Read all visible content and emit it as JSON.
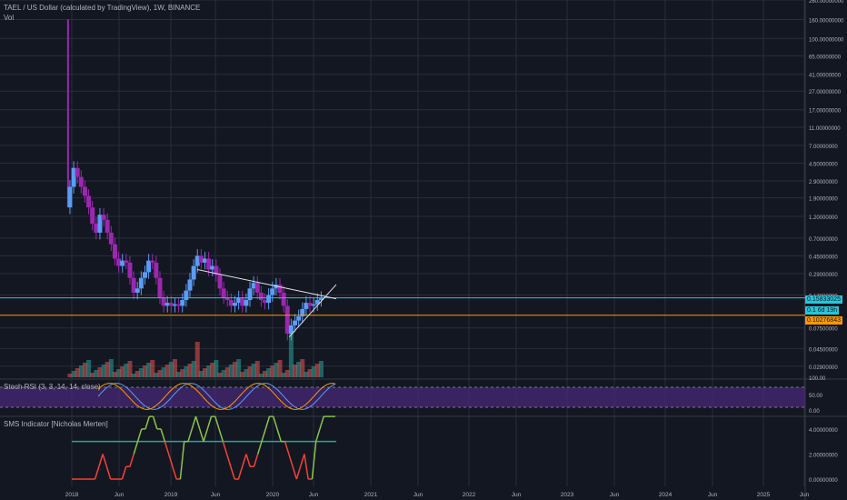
{
  "header": {
    "title": "TAEL / US Dollar (calculated by TradingView), 1W, BINANCE",
    "vol_label": "Vol"
  },
  "colors": {
    "background": "#131722",
    "grid": "#2a2e39",
    "axis_text": "#b2b5be",
    "candle_up": "#5b9cf6",
    "candle_down": "#9c27b0",
    "cyan_line": "#26c6da",
    "orange_line": "#ff9800",
    "stoch_band": "#4a2a7a",
    "sms_green": "#8bc34a",
    "sms_red": "#f44336",
    "sms_level": "#26a69a"
  },
  "price_labels": {
    "cyan": "0.15833025",
    "countdown": "6d 19h",
    "cyan_prefix": "0.1",
    "orange": "0.10276843"
  },
  "x_axis": {
    "ticks": [
      "2018",
      "Jun",
      "2019",
      "Jun",
      "2020",
      "Jun",
      "2021",
      "Jun",
      "2022",
      "Jun",
      "2023",
      "Jun",
      "2024",
      "Jun",
      "2025",
      "Jun"
    ]
  },
  "price_axis": {
    "ticks": [
      "260.00000000",
      "160.00000000",
      "100.00000000",
      "65.00000000",
      "41.00000000",
      "27.00000000",
      "17.00000000",
      "11.00000000",
      "7.00000000",
      "4.50000000",
      "2.90000000",
      "1.90000000",
      "1.20000000",
      "0.70000000",
      "0.45000000",
      "0.29000000",
      "0.17000000",
      "0.07500000",
      "0.04500000",
      "0.02900000"
    ]
  },
  "stoch_panel": {
    "label": "Stoch RSI (3, 3, 14, 14, close)",
    "ticks": [
      "100.00",
      "50.00",
      "0.00"
    ]
  },
  "sms_panel": {
    "label": "SMS Indicator [Nicholas Merten]",
    "ticks": [
      "4.00000000",
      "2.00000000",
      "0.00000000"
    ]
  },
  "chart_data": {
    "type": "candlestick",
    "title": "TAEL / US Dollar (calculated by TradingView), 1W, BINANCE",
    "scale": "log",
    "ylim": [
      0.02,
      260
    ],
    "x_range": [
      "2017-12",
      "2025-07"
    ],
    "grid": true,
    "close_series": [
      {
        "date": "2017-12-25",
        "value": 2.5
      },
      {
        "date": "2018-01-08",
        "value": 4.0
      },
      {
        "date": "2018-01-22",
        "value": 3.2
      },
      {
        "date": "2018-02-05",
        "value": 2.5
      },
      {
        "date": "2018-02-19",
        "value": 2.0
      },
      {
        "date": "2018-03-05",
        "value": 1.5
      },
      {
        "date": "2018-03-19",
        "value": 1.0
      },
      {
        "date": "2018-04-02",
        "value": 0.8
      },
      {
        "date": "2018-04-16",
        "value": 1.25
      },
      {
        "date": "2018-04-30",
        "value": 1.1
      },
      {
        "date": "2018-05-14",
        "value": 0.8
      },
      {
        "date": "2018-05-28",
        "value": 0.6
      },
      {
        "date": "2018-06-11",
        "value": 0.42
      },
      {
        "date": "2018-06-25",
        "value": 0.35
      },
      {
        "date": "2018-07-09",
        "value": 0.4
      },
      {
        "date": "2018-07-23",
        "value": 0.38
      },
      {
        "date": "2018-08-06",
        "value": 0.26
      },
      {
        "date": "2018-08-20",
        "value": 0.18
      },
      {
        "date": "2018-09-03",
        "value": 0.2
      },
      {
        "date": "2018-09-17",
        "value": 0.26
      },
      {
        "date": "2018-10-01",
        "value": 0.3
      },
      {
        "date": "2018-10-15",
        "value": 0.4
      },
      {
        "date": "2018-10-29",
        "value": 0.38
      },
      {
        "date": "2018-11-12",
        "value": 0.26
      },
      {
        "date": "2018-11-26",
        "value": 0.16
      },
      {
        "date": "2018-12-10",
        "value": 0.13
      },
      {
        "date": "2018-12-24",
        "value": 0.14
      },
      {
        "date": "2019-01-07",
        "value": 0.13
      },
      {
        "date": "2019-01-21",
        "value": 0.135
      },
      {
        "date": "2019-02-04",
        "value": 0.13
      },
      {
        "date": "2019-02-18",
        "value": 0.15
      },
      {
        "date": "2019-03-04",
        "value": 0.19
      },
      {
        "date": "2019-03-18",
        "value": 0.25
      },
      {
        "date": "2019-04-01",
        "value": 0.35
      },
      {
        "date": "2019-04-15",
        "value": 0.45
      },
      {
        "date": "2019-04-29",
        "value": 0.38
      },
      {
        "date": "2019-05-13",
        "value": 0.42
      },
      {
        "date": "2019-05-27",
        "value": 0.32
      },
      {
        "date": "2019-06-10",
        "value": 0.35
      },
      {
        "date": "2019-06-24",
        "value": 0.28
      },
      {
        "date": "2019-07-08",
        "value": 0.2
      },
      {
        "date": "2019-07-22",
        "value": 0.16
      },
      {
        "date": "2019-08-05",
        "value": 0.15
      },
      {
        "date": "2019-08-19",
        "value": 0.13
      },
      {
        "date": "2019-09-02",
        "value": 0.14
      },
      {
        "date": "2019-09-16",
        "value": 0.16
      },
      {
        "date": "2019-09-30",
        "value": 0.13
      },
      {
        "date": "2019-10-14",
        "value": 0.15
      },
      {
        "date": "2019-10-28",
        "value": 0.2
      },
      {
        "date": "2019-11-11",
        "value": 0.23
      },
      {
        "date": "2019-11-25",
        "value": 0.18
      },
      {
        "date": "2019-12-09",
        "value": 0.15
      },
      {
        "date": "2019-12-23",
        "value": 0.14
      },
      {
        "date": "2020-01-06",
        "value": 0.17
      },
      {
        "date": "2020-01-20",
        "value": 0.2
      },
      {
        "date": "2020-02-03",
        "value": 0.22
      },
      {
        "date": "2020-02-17",
        "value": 0.18
      },
      {
        "date": "2020-03-02",
        "value": 0.13
      },
      {
        "date": "2020-03-16",
        "value": 0.065
      },
      {
        "date": "2020-03-30",
        "value": 0.08
      },
      {
        "date": "2020-04-13",
        "value": 0.09
      },
      {
        "date": "2020-04-27",
        "value": 0.1
      },
      {
        "date": "2020-05-11",
        "value": 0.12
      },
      {
        "date": "2020-05-25",
        "value": 0.14
      },
      {
        "date": "2020-06-08",
        "value": 0.13
      },
      {
        "date": "2020-06-22",
        "value": 0.135
      },
      {
        "date": "2020-07-06",
        "value": 0.15
      },
      {
        "date": "2020-07-20",
        "value": 0.158
      }
    ],
    "horizontal_lines": [
      {
        "value": 0.15833025,
        "color": "cyan"
      },
      {
        "value": 0.10276843,
        "color": "orange"
      }
    ],
    "trendlines": [
      {
        "from": {
          "date": "2019-04-15",
          "value": 0.32
        },
        "to": {
          "date": "2020-09-14",
          "value": 0.155
        }
      },
      {
        "from": {
          "date": "2020-03-23",
          "value": 0.06
        },
        "to": {
          "date": "2020-09-14",
          "value": 0.22
        }
      }
    ],
    "sms_levels": [
      3,
      0
    ]
  }
}
